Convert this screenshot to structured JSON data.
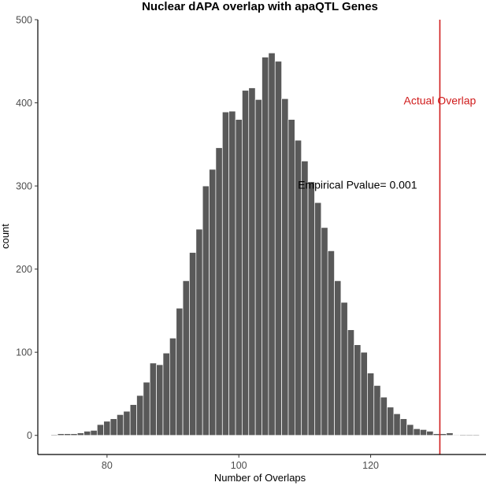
{
  "chart_data": {
    "type": "bar",
    "title": "Nuclear dAPA overlap with apaQTL Genes",
    "xlabel": "Number of Overlaps",
    "ylabel": "count",
    "xlim": [
      69.5,
      137.5
    ],
    "ylim": [
      -23,
      500
    ],
    "x_ticks": [
      80,
      100,
      120
    ],
    "y_ticks": [
      0,
      100,
      200,
      300,
      400,
      500
    ],
    "x_tick_labels": [
      "80",
      "100",
      "120"
    ],
    "y_tick_labels": [
      "0",
      "100",
      "200",
      "300",
      "400",
      "500"
    ],
    "grid": false,
    "bar_color": "#595959",
    "x": [
      72,
      73,
      74,
      75,
      76,
      77,
      78,
      79,
      80,
      81,
      82,
      83,
      84,
      85,
      86,
      87,
      88,
      89,
      90,
      91,
      92,
      93,
      94,
      95,
      96,
      97,
      98,
      99,
      100,
      101,
      102,
      103,
      104,
      105,
      106,
      107,
      108,
      109,
      110,
      111,
      112,
      113,
      114,
      115,
      116,
      117,
      118,
      119,
      120,
      121,
      122,
      123,
      124,
      125,
      126,
      127,
      128,
      129,
      130,
      131,
      132,
      133,
      134,
      135,
      136
    ],
    "values": [
      1,
      2,
      2,
      2,
      3,
      5,
      6,
      13,
      17,
      20,
      25,
      29,
      37,
      48,
      64,
      87,
      85,
      99,
      117,
      153,
      186,
      220,
      248,
      300,
      320,
      346,
      389,
      390,
      380,
      415,
      418,
      404,
      455,
      460,
      450,
      405,
      380,
      355,
      330,
      305,
      280,
      250,
      222,
      186,
      160,
      127,
      109,
      100,
      75,
      60,
      46,
      34,
      26,
      20,
      13,
      8,
      7,
      5,
      2,
      2,
      3,
      0,
      1,
      1,
      1
    ],
    "reference_line": {
      "x": 130.5,
      "label": "Actual Overlap",
      "color": "#d01c1c"
    },
    "annotations": [
      {
        "text": "Empirical Pvalue= 0.001",
        "x": 118,
        "y": 297,
        "color": "#000000"
      }
    ]
  }
}
